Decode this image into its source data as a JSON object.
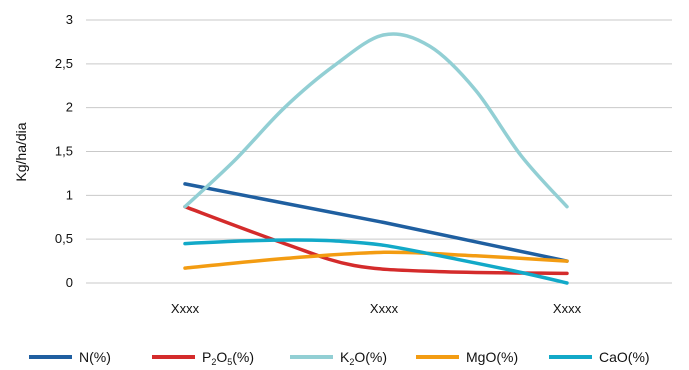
{
  "chart_data": {
    "type": "line",
    "ylabel": "Kg/ha/dia",
    "ylim": [
      0,
      3
    ],
    "yticks": [
      "0",
      "0,5",
      "1",
      "1,5",
      "2",
      "2,5",
      "3"
    ],
    "categories": [
      "Xxxx",
      "Xxxx",
      "Xxxx"
    ],
    "grid": true,
    "legend_position": "bottom",
    "series": [
      {
        "name": "N(%)",
        "legend": {
          "pre": "N(%)"
        },
        "color": "#1f5fa0",
        "x": [
          0,
          1,
          2
        ],
        "values": [
          1.13,
          0.69,
          0.25
        ],
        "smooth": false
      },
      {
        "name": "P2O5(%)",
        "legend": {
          "pre": "P",
          "sub1": "2",
          "mid": "O",
          "sub2": "5",
          "post": "(%)"
        },
        "color": "#d42b2b",
        "x": [
          0,
          0.5,
          0.85,
          1.3,
          2
        ],
        "values": [
          0.87,
          0.45,
          0.2,
          0.13,
          0.11
        ],
        "smooth": true
      },
      {
        "name": "K2O(%)",
        "legend": {
          "pre": "K",
          "sub1": "2",
          "mid": "O(%)"
        },
        "color": "#92cfd4",
        "x": [
          0,
          0.25,
          0.5,
          0.75,
          1,
          1.25,
          1.5,
          1.75,
          2
        ],
        "values": [
          0.87,
          1.4,
          2.0,
          2.48,
          2.83,
          2.7,
          2.2,
          1.45,
          0.87
        ],
        "smooth": true
      },
      {
        "name": "MgO(%)",
        "legend": {
          "pre": "MgO(%)"
        },
        "color": "#f39c12",
        "x": [
          0,
          0.5,
          1,
          1.5,
          2
        ],
        "values": [
          0.17,
          0.28,
          0.35,
          0.31,
          0.25
        ],
        "smooth": true
      },
      {
        "name": "CaO(%)",
        "legend": {
          "pre": "CaO(%)"
        },
        "color": "#12a9c8",
        "x": [
          0,
          0.3,
          0.55,
          0.75,
          1,
          1.4,
          1.75,
          2
        ],
        "values": [
          0.45,
          0.48,
          0.49,
          0.48,
          0.43,
          0.27,
          0.12,
          0.0
        ],
        "smooth": true
      }
    ]
  }
}
